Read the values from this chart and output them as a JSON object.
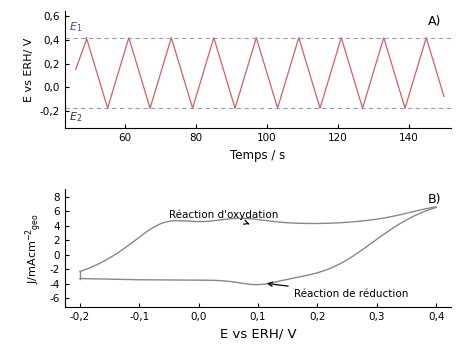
{
  "panel_A": {
    "E1": 0.42,
    "E2": -0.18,
    "ylabel": "E vs ERH/ V",
    "xlabel": "Temps / s",
    "label": "A)",
    "ylim": [
      -0.35,
      0.65
    ],
    "yticks": [
      -0.2,
      0.0,
      0.2,
      0.4,
      0.6
    ],
    "ytick_labels": [
      "-0,2",
      "0,0",
      "0,2",
      "0,4",
      "0,6"
    ],
    "xlim": [
      43,
      152
    ],
    "xticks": [
      60,
      80,
      100,
      120,
      140
    ],
    "line_color": "#d46060",
    "dashed_color": "#8888cc",
    "E1_label": "E₁",
    "E2_label": "E₂",
    "E1_color": "#4444aa",
    "E2_color": "#333333"
  },
  "panel_B": {
    "xlabel": "E vs ERH/ V",
    "label": "B)",
    "ylim": [
      -7.2,
      9.0
    ],
    "yticks": [
      -6,
      -4,
      -2,
      0,
      2,
      4,
      6,
      8
    ],
    "xlim": [
      -0.225,
      0.425
    ],
    "xticks": [
      -0.2,
      -0.1,
      0.0,
      0.1,
      0.2,
      0.3,
      0.4
    ],
    "xtick_labels": [
      "-0,2",
      "-0,1",
      "0,0",
      "0,1",
      "0,2",
      "0,3",
      "0,4"
    ],
    "line_color": "#888888",
    "annotation_ox": "Réaction d'oxydation",
    "annotation_red": "Réaction de réduction"
  }
}
